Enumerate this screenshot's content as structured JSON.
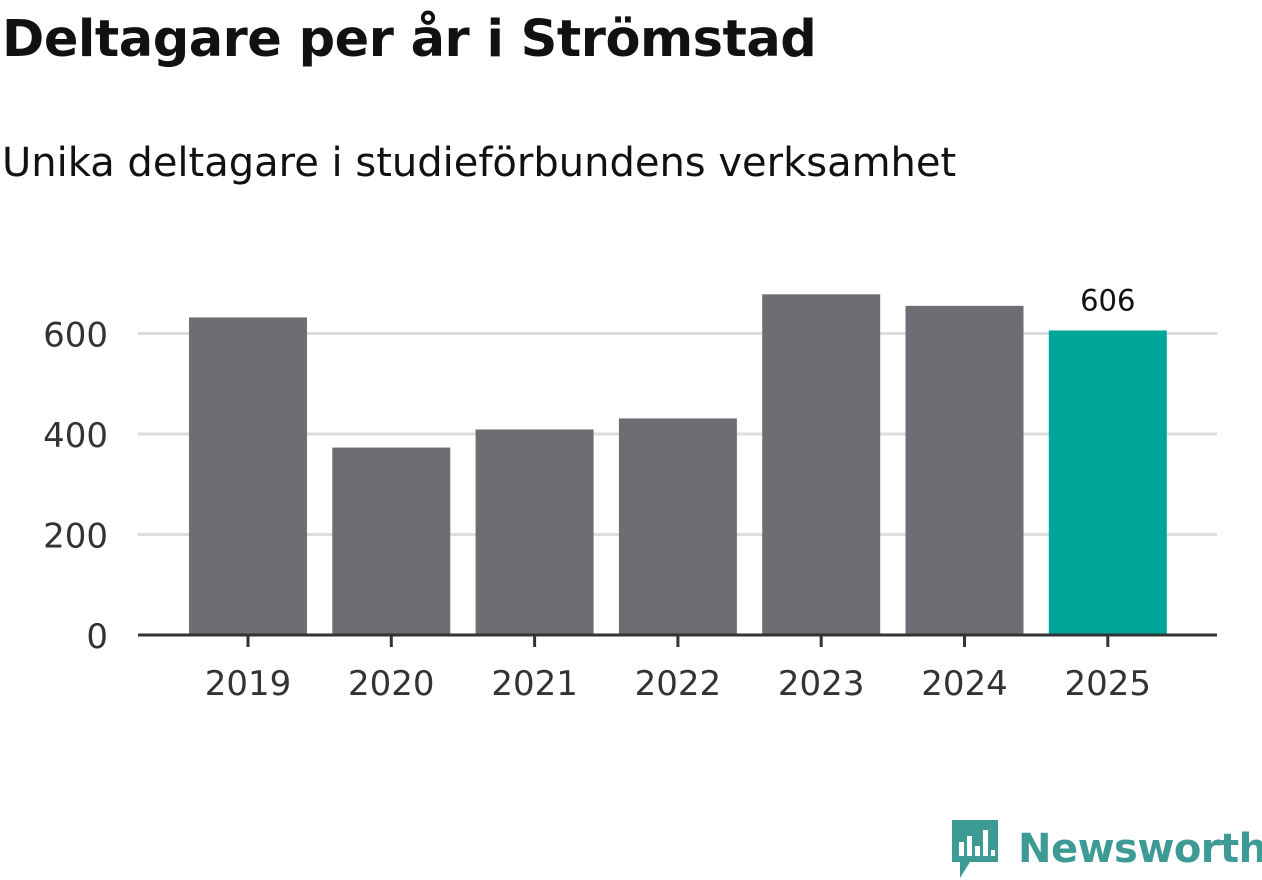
{
  "chart_data": {
    "type": "bar",
    "title": "Deltagare per år i Strömstad",
    "subtitle": "Unika deltagare i studieförbundens verksamhet",
    "categories": [
      "2019",
      "2020",
      "2021",
      "2022",
      "2023",
      "2024",
      "2025"
    ],
    "values": [
      632,
      373,
      409,
      431,
      678,
      655,
      606
    ],
    "highlight_index": 6,
    "highlight_label": "606",
    "yticks": [
      "0",
      "200",
      "400",
      "600"
    ],
    "ytick_values": [
      0,
      200,
      400,
      600
    ],
    "ylim": [
      0,
      700
    ],
    "xlabel": "",
    "ylabel": "",
    "colors": {
      "bar": "#6e6d73",
      "highlight": "#00a59a",
      "grid": "#dddddd",
      "axis": "#333333",
      "text": "#333333"
    }
  },
  "brand": {
    "name": "Newsworthy",
    "logo_icon": "newsworthy-logo-icon",
    "color": "#3d9a94"
  }
}
